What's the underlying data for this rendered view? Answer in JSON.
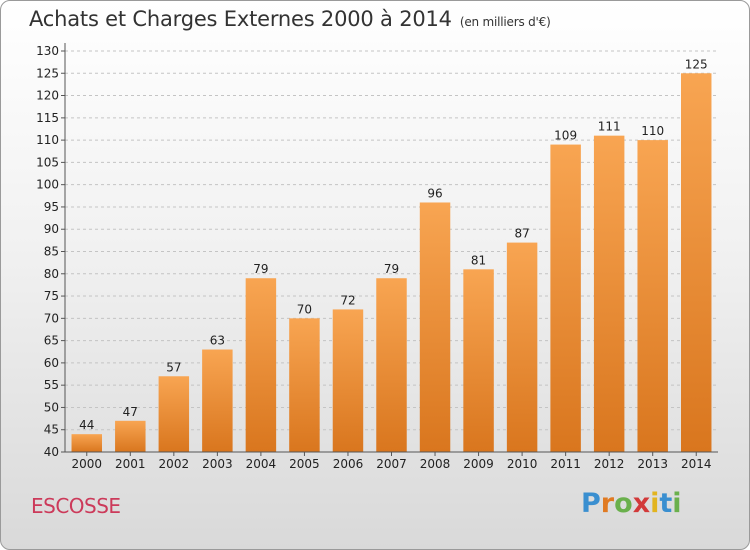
{
  "header": {
    "title": "Achats et Charges Externes 2000 à 2014",
    "subtitle": "(en milliers d'€)"
  },
  "footer": {
    "place": "ESCOSSE",
    "logo_letters": [
      {
        "ch": "P",
        "color": "#3a8fd0"
      },
      {
        "ch": "r",
        "color": "#e07a22"
      },
      {
        "ch": "o",
        "color": "#6ab04c"
      },
      {
        "ch": "x",
        "color": "#d23a3a"
      },
      {
        "ch": "i",
        "color": "#e2b41f"
      },
      {
        "ch": "t",
        "color": "#3a8fd0"
      },
      {
        "ch": "i",
        "color": "#6ab04c"
      }
    ]
  },
  "chart_data": {
    "type": "bar",
    "categories": [
      "2000",
      "2001",
      "2002",
      "2003",
      "2004",
      "2005",
      "2006",
      "2007",
      "2008",
      "2009",
      "2010",
      "2011",
      "2012",
      "2013",
      "2014"
    ],
    "values": [
      44,
      47,
      57,
      63,
      79,
      70,
      72,
      79,
      96,
      81,
      87,
      109,
      111,
      110,
      125
    ],
    "ylim": [
      40,
      130
    ],
    "ytick_step": 5,
    "grid": true,
    "bar_color_top": "#f8a552",
    "bar_color_bottom": "#d9761e"
  }
}
